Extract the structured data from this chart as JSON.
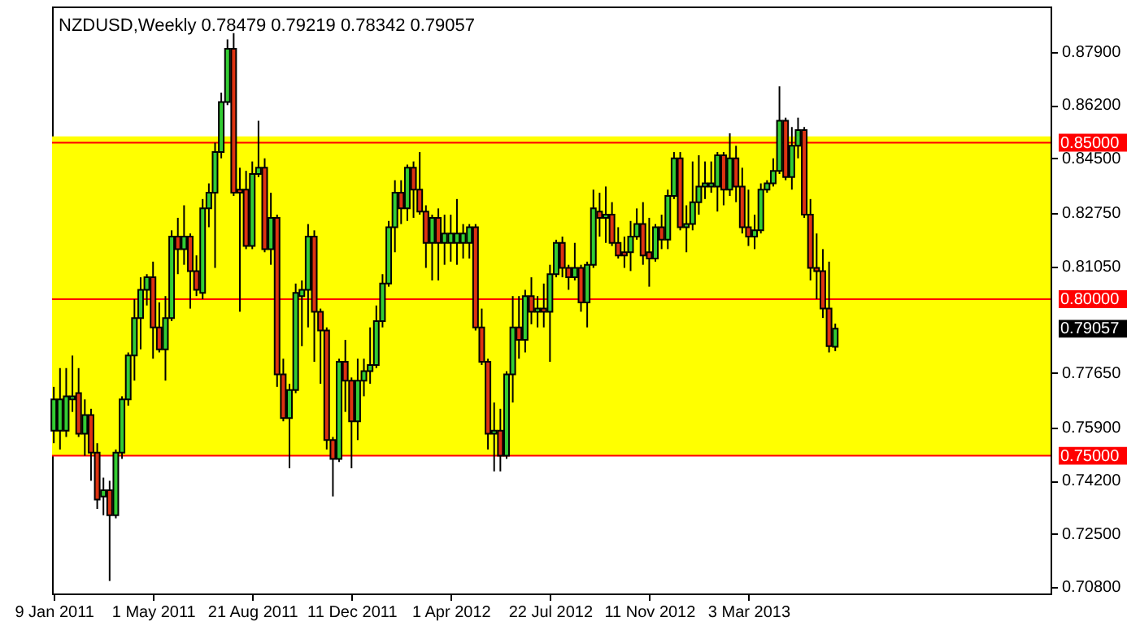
{
  "chart_data": {
    "type": "candlestick",
    "title": "NZDUSD,Weekly  0.78479 0.79219 0.78342 0.79057",
    "x": [
      "2011-01-09",
      "2011-01-16",
      "2011-01-23",
      "2011-01-30",
      "2011-02-06",
      "2011-02-13",
      "2011-02-20",
      "2011-02-27",
      "2011-03-06",
      "2011-03-13",
      "2011-03-20",
      "2011-03-27",
      "2011-04-03",
      "2011-04-10",
      "2011-04-17",
      "2011-04-24",
      "2011-05-01",
      "2011-05-08",
      "2011-05-15",
      "2011-05-22",
      "2011-05-29",
      "2011-06-05",
      "2011-06-12",
      "2011-06-19",
      "2011-06-26",
      "2011-07-03",
      "2011-07-10",
      "2011-07-17",
      "2011-07-24",
      "2011-07-31",
      "2011-08-07",
      "2011-08-14",
      "2011-08-21",
      "2011-08-28",
      "2011-09-04",
      "2011-09-11",
      "2011-09-18",
      "2011-09-25",
      "2011-10-02",
      "2011-10-09",
      "2011-10-16",
      "2011-10-23",
      "2011-10-30",
      "2011-11-06",
      "2011-11-13",
      "2011-11-20",
      "2011-11-27",
      "2011-12-04",
      "2011-12-11",
      "2011-12-18",
      "2011-12-25",
      "2012-01-01",
      "2012-01-08",
      "2012-01-15",
      "2012-01-22",
      "2012-01-29",
      "2012-02-05",
      "2012-02-12",
      "2012-02-19",
      "2012-02-26",
      "2012-03-04",
      "2012-03-11",
      "2012-03-18",
      "2012-03-25",
      "2012-04-01",
      "2012-04-08",
      "2012-04-15",
      "2012-04-22",
      "2012-04-29",
      "2012-05-06",
      "2012-05-13",
      "2012-05-20",
      "2012-05-27",
      "2012-06-03",
      "2012-06-10",
      "2012-06-17",
      "2012-06-24",
      "2012-07-01",
      "2012-07-08",
      "2012-07-15",
      "2012-07-22",
      "2012-07-29",
      "2012-08-05",
      "2012-08-12",
      "2012-08-19",
      "2012-08-26",
      "2012-09-02",
      "2012-09-09",
      "2012-09-16",
      "2012-09-23",
      "2012-09-30",
      "2012-10-07",
      "2012-10-14",
      "2012-10-21",
      "2012-10-28",
      "2012-11-04",
      "2012-11-11",
      "2012-11-18",
      "2012-11-25",
      "2012-12-02",
      "2012-12-09",
      "2012-12-16",
      "2012-12-23",
      "2012-12-30",
      "2013-01-06",
      "2013-01-13",
      "2013-01-20",
      "2013-01-27",
      "2013-02-03",
      "2013-02-10",
      "2013-02-17",
      "2013-02-24",
      "2013-03-03",
      "2013-03-10",
      "2013-03-17",
      "2013-03-24",
      "2013-03-31",
      "2013-04-07",
      "2013-04-14",
      "2013-04-21",
      "2013-04-28",
      "2013-05-05",
      "2013-05-12",
      "2013-05-19",
      "2013-05-26",
      "2013-06-02",
      "2013-06-09"
    ],
    "ohlc": [
      [
        0.758,
        0.772,
        0.754,
        0.768
      ],
      [
        0.758,
        0.778,
        0.752,
        0.768
      ],
      [
        0.758,
        0.778,
        0.756,
        0.769
      ],
      [
        0.768,
        0.782,
        0.764,
        0.769
      ],
      [
        0.77,
        0.778,
        0.756,
        0.757
      ],
      [
        0.757,
        0.768,
        0.75,
        0.763
      ],
      [
        0.763,
        0.765,
        0.742,
        0.751
      ],
      [
        0.751,
        0.754,
        0.733,
        0.736
      ],
      [
        0.737,
        0.743,
        0.731,
        0.739
      ],
      [
        0.739,
        0.742,
        0.71,
        0.731
      ],
      [
        0.731,
        0.752,
        0.73,
        0.751
      ],
      [
        0.751,
        0.769,
        0.749,
        0.768
      ],
      [
        0.768,
        0.783,
        0.766,
        0.782
      ],
      [
        0.782,
        0.8,
        0.774,
        0.794
      ],
      [
        0.794,
        0.807,
        0.784,
        0.803
      ],
      [
        0.803,
        0.808,
        0.798,
        0.807
      ],
      [
        0.807,
        0.812,
        0.781,
        0.791
      ],
      [
        0.791,
        0.799,
        0.783,
        0.784
      ],
      [
        0.784,
        0.801,
        0.774,
        0.794
      ],
      [
        0.794,
        0.822,
        0.793,
        0.82
      ],
      [
        0.82,
        0.826,
        0.808,
        0.816
      ],
      [
        0.816,
        0.83,
        0.811,
        0.82
      ],
      [
        0.82,
        0.821,
        0.797,
        0.809
      ],
      [
        0.809,
        0.814,
        0.801,
        0.803
      ],
      [
        0.802,
        0.832,
        0.8,
        0.829
      ],
      [
        0.829,
        0.837,
        0.823,
        0.834
      ],
      [
        0.834,
        0.85,
        0.81,
        0.847
      ],
      [
        0.847,
        0.866,
        0.845,
        0.863
      ],
      [
        0.863,
        0.883,
        0.862,
        0.88
      ],
      [
        0.88,
        0.885,
        0.833,
        0.834
      ],
      [
        0.835,
        0.842,
        0.796,
        0.834
      ],
      [
        0.835,
        0.841,
        0.816,
        0.817
      ],
      [
        0.817,
        0.844,
        0.816,
        0.84
      ],
      [
        0.84,
        0.857,
        0.839,
        0.842
      ],
      [
        0.842,
        0.845,
        0.815,
        0.816
      ],
      [
        0.816,
        0.834,
        0.811,
        0.826
      ],
      [
        0.826,
        0.827,
        0.772,
        0.776
      ],
      [
        0.776,
        0.781,
        0.761,
        0.762
      ],
      [
        0.762,
        0.773,
        0.746,
        0.771
      ],
      [
        0.771,
        0.805,
        0.77,
        0.802
      ],
      [
        0.801,
        0.806,
        0.785,
        0.803
      ],
      [
        0.803,
        0.824,
        0.791,
        0.82
      ],
      [
        0.82,
        0.822,
        0.78,
        0.796
      ],
      [
        0.796,
        0.797,
        0.773,
        0.79
      ],
      [
        0.79,
        0.791,
        0.752,
        0.755
      ],
      [
        0.755,
        0.756,
        0.737,
        0.749
      ],
      [
        0.749,
        0.781,
        0.748,
        0.78
      ],
      [
        0.78,
        0.787,
        0.764,
        0.774
      ],
      [
        0.774,
        0.775,
        0.746,
        0.761
      ],
      [
        0.761,
        0.781,
        0.755,
        0.774
      ],
      [
        0.774,
        0.781,
        0.769,
        0.777
      ],
      [
        0.777,
        0.791,
        0.773,
        0.779
      ],
      [
        0.779,
        0.798,
        0.778,
        0.793
      ],
      [
        0.793,
        0.808,
        0.791,
        0.805
      ],
      [
        0.805,
        0.825,
        0.804,
        0.823
      ],
      [
        0.823,
        0.838,
        0.815,
        0.834
      ],
      [
        0.834,
        0.838,
        0.824,
        0.829
      ],
      [
        0.829,
        0.843,
        0.825,
        0.842
      ],
      [
        0.842,
        0.844,
        0.826,
        0.835
      ],
      [
        0.835,
        0.847,
        0.827,
        0.828
      ],
      [
        0.828,
        0.83,
        0.81,
        0.818
      ],
      [
        0.818,
        0.827,
        0.806,
        0.826
      ],
      [
        0.826,
        0.829,
        0.806,
        0.818
      ],
      [
        0.818,
        0.827,
        0.811,
        0.821
      ],
      [
        0.818,
        0.827,
        0.812,
        0.821
      ],
      [
        0.818,
        0.832,
        0.811,
        0.821
      ],
      [
        0.818,
        0.824,
        0.813,
        0.821
      ],
      [
        0.818,
        0.824,
        0.813,
        0.823
      ],
      [
        0.823,
        0.824,
        0.79,
        0.791
      ],
      [
        0.791,
        0.797,
        0.779,
        0.78
      ],
      [
        0.78,
        0.781,
        0.752,
        0.757
      ],
      [
        0.757,
        0.767,
        0.745,
        0.758
      ],
      [
        0.758,
        0.765,
        0.745,
        0.75
      ],
      [
        0.75,
        0.777,
        0.749,
        0.776
      ],
      [
        0.776,
        0.801,
        0.767,
        0.791
      ],
      [
        0.791,
        0.801,
        0.781,
        0.787
      ],
      [
        0.787,
        0.803,
        0.783,
        0.801
      ],
      [
        0.801,
        0.807,
        0.792,
        0.796
      ],
      [
        0.796,
        0.801,
        0.791,
        0.797
      ],
      [
        0.797,
        0.805,
        0.791,
        0.796
      ],
      [
        0.796,
        0.811,
        0.78,
        0.808
      ],
      [
        0.808,
        0.819,
        0.807,
        0.818
      ],
      [
        0.818,
        0.82,
        0.807,
        0.81
      ],
      [
        0.81,
        0.811,
        0.803,
        0.807
      ],
      [
        0.807,
        0.818,
        0.806,
        0.81
      ],
      [
        0.81,
        0.811,
        0.796,
        0.799
      ],
      [
        0.799,
        0.812,
        0.791,
        0.811
      ],
      [
        0.811,
        0.835,
        0.81,
        0.829
      ],
      [
        0.828,
        0.834,
        0.82,
        0.826
      ],
      [
        0.826,
        0.836,
        0.818,
        0.827
      ],
      [
        0.827,
        0.831,
        0.817,
        0.818
      ],
      [
        0.818,
        0.823,
        0.813,
        0.814
      ],
      [
        0.815,
        0.82,
        0.81,
        0.814
      ],
      [
        0.815,
        0.825,
        0.809,
        0.82
      ],
      [
        0.82,
        0.829,
        0.819,
        0.824
      ],
      [
        0.824,
        0.831,
        0.811,
        0.814
      ],
      [
        0.815,
        0.826,
        0.804,
        0.813
      ],
      [
        0.813,
        0.824,
        0.812,
        0.823
      ],
      [
        0.823,
        0.827,
        0.816,
        0.819
      ],
      [
        0.819,
        0.835,
        0.816,
        0.833
      ],
      [
        0.833,
        0.847,
        0.832,
        0.845
      ],
      [
        0.845,
        0.847,
        0.822,
        0.823
      ],
      [
        0.823,
        0.83,
        0.815,
        0.824
      ],
      [
        0.824,
        0.844,
        0.822,
        0.831
      ],
      [
        0.831,
        0.846,
        0.827,
        0.836
      ],
      [
        0.836,
        0.844,
        0.832,
        0.837
      ],
      [
        0.836,
        0.844,
        0.834,
        0.837
      ],
      [
        0.836,
        0.847,
        0.828,
        0.846
      ],
      [
        0.846,
        0.847,
        0.83,
        0.835
      ],
      [
        0.835,
        0.853,
        0.833,
        0.845
      ],
      [
        0.845,
        0.849,
        0.831,
        0.836
      ],
      [
        0.836,
        0.842,
        0.821,
        0.823
      ],
      [
        0.823,
        0.835,
        0.817,
        0.82
      ],
      [
        0.82,
        0.827,
        0.816,
        0.822
      ],
      [
        0.822,
        0.837,
        0.821,
        0.835
      ],
      [
        0.835,
        0.838,
        0.834,
        0.837
      ],
      [
        0.837,
        0.845,
        0.836,
        0.841
      ],
      [
        0.841,
        0.868,
        0.84,
        0.857
      ],
      [
        0.857,
        0.858,
        0.838,
        0.839
      ],
      [
        0.839,
        0.855,
        0.835,
        0.849
      ],
      [
        0.849,
        0.858,
        0.845,
        0.854
      ],
      [
        0.854,
        0.855,
        0.826,
        0.827
      ],
      [
        0.827,
        0.832,
        0.806,
        0.81
      ],
      [
        0.81,
        0.821,
        0.8,
        0.809
      ],
      [
        0.809,
        0.816,
        0.794,
        0.797
      ],
      [
        0.797,
        0.812,
        0.783,
        0.785
      ],
      [
        0.78479,
        0.79219,
        0.78342,
        0.79057
      ]
    ],
    "colors": [
      "#33cc33",
      "#33cc33",
      "#33cc33",
      "#33cc33",
      "#dd3311",
      "#33cc33",
      "#dd3311",
      "#dd3311",
      "#33cc33",
      "#dd3311",
      "#33cc33",
      "#33cc33",
      "#33cc33",
      "#33cc33",
      "#33cc33",
      "#33cc33",
      "#dd3311",
      "#dd3311",
      "#33cc33",
      "#33cc33",
      "#dd3311",
      "#33cc33",
      "#dd3311",
      "#dd3311",
      "#33cc33",
      "#33cc33",
      "#33cc33",
      "#33cc33",
      "#33cc33",
      "#dd3311",
      "#dd3311",
      "#dd3311",
      "#33cc33",
      "#33cc33",
      "#dd3311",
      "#33cc33",
      "#dd3311",
      "#dd3311",
      "#33cc33",
      "#33cc33",
      "#33cc33",
      "#33cc33",
      "#dd3311",
      "#dd3311",
      "#dd3311",
      "#dd3311",
      "#33cc33",
      "#dd3311",
      "#dd3311",
      "#33cc33",
      "#33cc33",
      "#33cc33",
      "#33cc33",
      "#33cc33",
      "#33cc33",
      "#33cc33",
      "#dd3311",
      "#33cc33",
      "#dd3311",
      "#dd3311",
      "#dd3311",
      "#33cc33",
      "#dd3311",
      "#33cc33",
      "#33cc33",
      "#33cc33",
      "#33cc33",
      "#33cc33",
      "#dd3311",
      "#dd3311",
      "#dd3311",
      "#33cc33",
      "#dd3311",
      "#33cc33",
      "#33cc33",
      "#dd3311",
      "#33cc33",
      "#dd3311",
      "#33cc33",
      "#dd3311",
      "#33cc33",
      "#33cc33",
      "#dd3311",
      "#dd3311",
      "#33cc33",
      "#dd3311",
      "#33cc33",
      "#33cc33",
      "#dd3311",
      "#33cc33",
      "#dd3311",
      "#dd3311",
      "#dd3311",
      "#33cc33",
      "#33cc33",
      "#dd3311",
      "#dd3311",
      "#33cc33",
      "#dd3311",
      "#33cc33",
      "#33cc33",
      "#dd3311",
      "#33cc33",
      "#33cc33",
      "#33cc33",
      "#33cc33",
      "#33cc33",
      "#33cc33",
      "#dd3311",
      "#33cc33",
      "#dd3311",
      "#dd3311",
      "#dd3311",
      "#33cc33",
      "#33cc33",
      "#33cc33",
      "#33cc33",
      "#33cc33",
      "#dd3311",
      "#33cc33",
      "#33cc33",
      "#dd3311",
      "#dd3311",
      "#dd3311",
      "#dd3311",
      "#dd3311",
      "#33cc33"
    ],
    "xlim": [
      "2011-01-07",
      "2014-02-07"
    ],
    "xticks": [
      {
        "value": "2011-01-09",
        "label": "9 Jan 2011"
      },
      {
        "value": "2011-05-01",
        "label": "1 May 2011"
      },
      {
        "value": "2011-08-21",
        "label": "21 Aug 2011"
      },
      {
        "value": "2011-12-11",
        "label": "11 Dec 2011"
      },
      {
        "value": "2012-04-01",
        "label": "1 Apr 2012"
      },
      {
        "value": "2012-07-22",
        "label": "22 Jul 2012"
      },
      {
        "value": "2012-11-11",
        "label": "11 Nov 2012"
      },
      {
        "value": "2013-03-03",
        "label": "3 Mar 2013"
      }
    ],
    "ylim": [
      0.706,
      0.8935
    ],
    "yticks": [
      {
        "value": 0.879,
        "label": "0.87900"
      },
      {
        "value": 0.862,
        "label": "0.86200"
      },
      {
        "value": 0.845,
        "label": "0.84500"
      },
      {
        "value": 0.8275,
        "label": "0.82750"
      },
      {
        "value": 0.8105,
        "label": "0.81050"
      },
      {
        "value": 0.7765,
        "label": "0.77650"
      },
      {
        "value": 0.759,
        "label": "0.75900"
      },
      {
        "value": 0.742,
        "label": "0.74200"
      },
      {
        "value": 0.725,
        "label": "0.72500"
      },
      {
        "value": 0.708,
        "label": "0.70800"
      }
    ],
    "bands": [
      {
        "axis": "y",
        "from": 0.75,
        "to": 0.852,
        "color": "#ffff00"
      }
    ],
    "ref_lines": [
      {
        "axis": "y",
        "value": 0.85,
        "label": "0.85000",
        "color": "#ff0000"
      },
      {
        "axis": "y",
        "value": 0.8,
        "label": "0.80000",
        "color": "#ff0000"
      },
      {
        "axis": "y",
        "value": 0.75,
        "label": "0.75000",
        "color": "#ff0000"
      }
    ],
    "annotations": [
      "0.79057"
    ]
  }
}
